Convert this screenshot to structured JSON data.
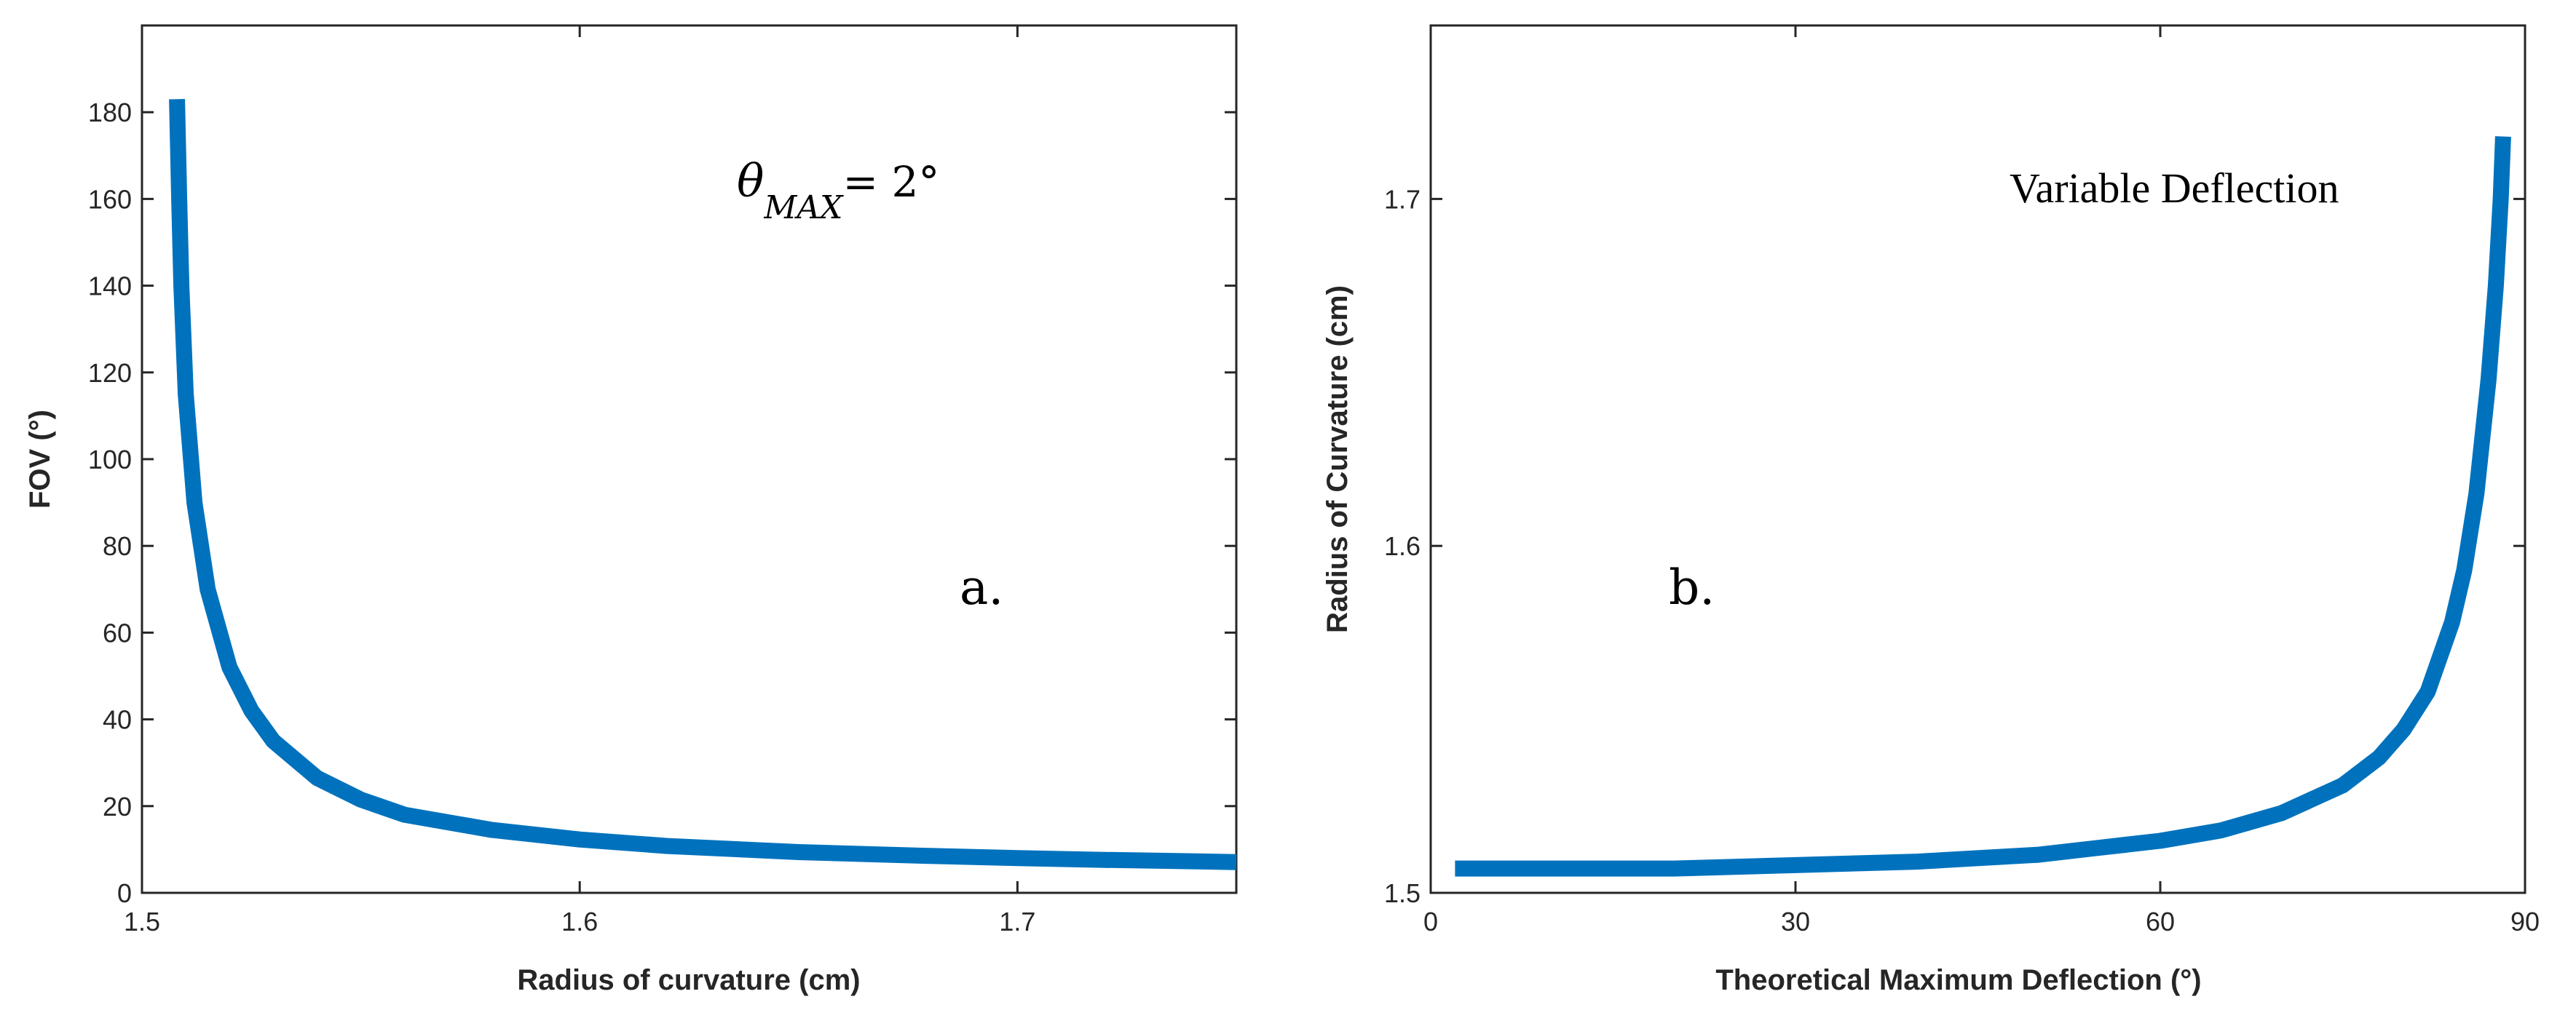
{
  "colors": {
    "line": "#0072BD",
    "axes": "#262626",
    "background": "#ffffff"
  },
  "chart_data": [
    {
      "type": "line",
      "panel": "a",
      "title": "",
      "xlabel": "Radius of curvature (cm)",
      "ylabel": "FOV (°)",
      "xlim": [
        1.5,
        1.75
      ],
      "ylim": [
        0,
        200
      ],
      "grid": false,
      "legend": "none",
      "xticks": [
        1.5,
        1.6,
        1.7
      ],
      "xtick_labels": [
        "1.5",
        "1.6",
        "1.7"
      ],
      "yticks": [
        0,
        20,
        40,
        60,
        80,
        100,
        120,
        140,
        160,
        180
      ],
      "ytick_labels": [
        "0",
        "20",
        "40",
        "60",
        "80",
        "100",
        "120",
        "140",
        "160",
        "180"
      ],
      "annotation_theta": {
        "symbol": "θ",
        "subscript": "MAX",
        "rest": "= 2°"
      },
      "panel_label": "a.",
      "series": [
        {
          "name": "FOV",
          "x": [
            1.508,
            1.5085,
            1.509,
            1.51,
            1.512,
            1.515,
            1.52,
            1.525,
            1.53,
            1.54,
            1.55,
            1.56,
            1.58,
            1.6,
            1.62,
            1.65,
            1.68,
            1.7,
            1.72,
            1.75
          ],
          "y": [
            183,
            160,
            140,
            115,
            90,
            70,
            52,
            42,
            35,
            26.5,
            21.5,
            18,
            14.5,
            12.3,
            10.8,
            9.4,
            8.5,
            8.0,
            7.6,
            7.1
          ]
        }
      ]
    },
    {
      "type": "line",
      "panel": "b",
      "title": "",
      "xlabel": "Theoretical Maximum Deflection (°)",
      "ylabel": "Radius of Curvature (cm)",
      "xlim": [
        0,
        90
      ],
      "ylim": [
        1.5,
        1.75
      ],
      "grid": false,
      "legend": "none",
      "xticks": [
        0,
        30,
        60,
        90
      ],
      "xtick_labels": [
        "0",
        "30",
        "60",
        "90"
      ],
      "yticks": [
        1.5,
        1.6,
        1.7
      ],
      "ytick_labels": [
        "1.5",
        "1.6",
        "1.7"
      ],
      "annotation_text": "Variable Deflection",
      "panel_label": "b.",
      "series": [
        {
          "name": "Radius of Curvature",
          "x": [
            2,
            10,
            20,
            30,
            40,
            50,
            55,
            60,
            65,
            70,
            75,
            78,
            80,
            82,
            84,
            85,
            86,
            87,
            87.6,
            88,
            88.2
          ],
          "y": [
            1.507,
            1.507,
            1.507,
            1.508,
            1.509,
            1.511,
            1.513,
            1.515,
            1.518,
            1.523,
            1.531,
            1.539,
            1.547,
            1.558,
            1.578,
            1.593,
            1.615,
            1.648,
            1.675,
            1.7,
            1.718
          ]
        }
      ]
    }
  ]
}
